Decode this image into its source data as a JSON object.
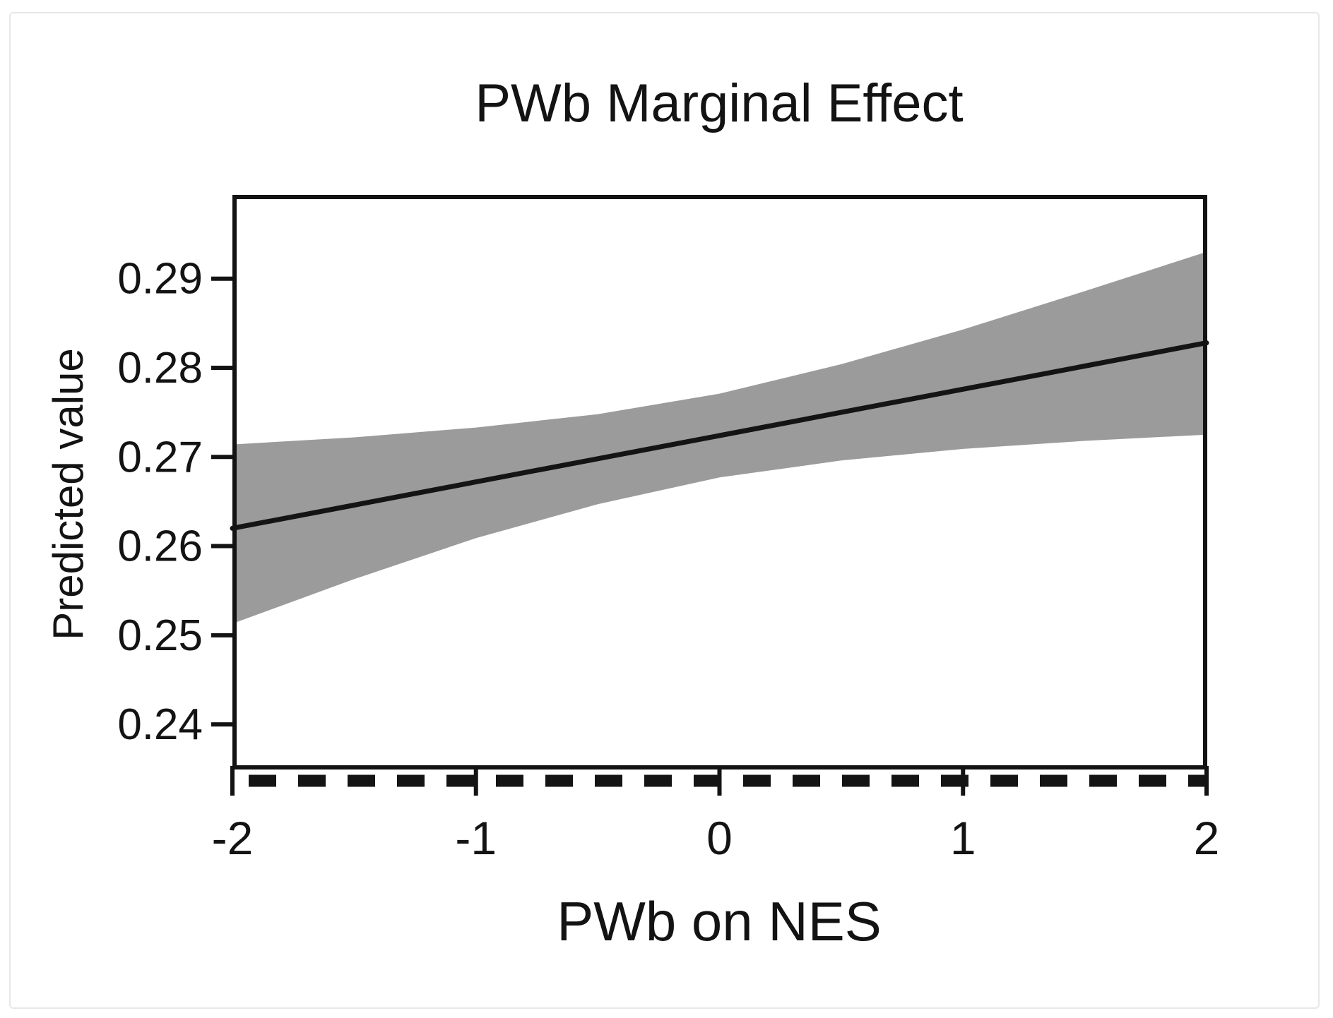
{
  "figure": {
    "background_color": "#ffffff",
    "frame_border_color": "#e7e7e7"
  },
  "chart_data": {
    "type": "line",
    "title": "PWb Marginal Effect",
    "xlabel": "PWb on NES",
    "ylabel": "Predicted value",
    "xlim": [
      -2,
      2
    ],
    "ylim": [
      0.2351,
      0.2994
    ],
    "grid": false,
    "legend": null,
    "x_ticks": [
      -2,
      -1,
      0,
      1,
      2
    ],
    "x_tick_labels": [
      "-2",
      "-1",
      "0",
      "1",
      "2"
    ],
    "y_ticks": [
      0.29,
      0.28,
      0.27,
      0.26,
      0.25,
      0.24
    ],
    "y_tick_labels": [
      "0.29",
      "0.28",
      "0.27",
      "0.26",
      "0.25",
      "0.24"
    ],
    "x": [
      -2,
      -1.5,
      -1,
      -0.5,
      0,
      0.5,
      1,
      1.5,
      2
    ],
    "series": [
      {
        "name": "fit",
        "values": [
          0.262,
          0.2646,
          0.2672,
          0.2698,
          0.2724,
          0.275,
          0.2776,
          0.2802,
          0.2828
        ]
      },
      {
        "name": "ci_lower",
        "values": [
          0.2513,
          0.2563,
          0.2609,
          0.2647,
          0.2677,
          0.2696,
          0.2709,
          0.2718,
          0.2725
        ]
      },
      {
        "name": "ci_upper",
        "values": [
          0.2714,
          0.2722,
          0.2733,
          0.2748,
          0.2771,
          0.2804,
          0.2843,
          0.2886,
          0.293
        ]
      }
    ],
    "band_color": "#9b9b9b",
    "line_color": "#141414",
    "axis_color": "#131313",
    "x_axis_rug_dashed": true
  }
}
